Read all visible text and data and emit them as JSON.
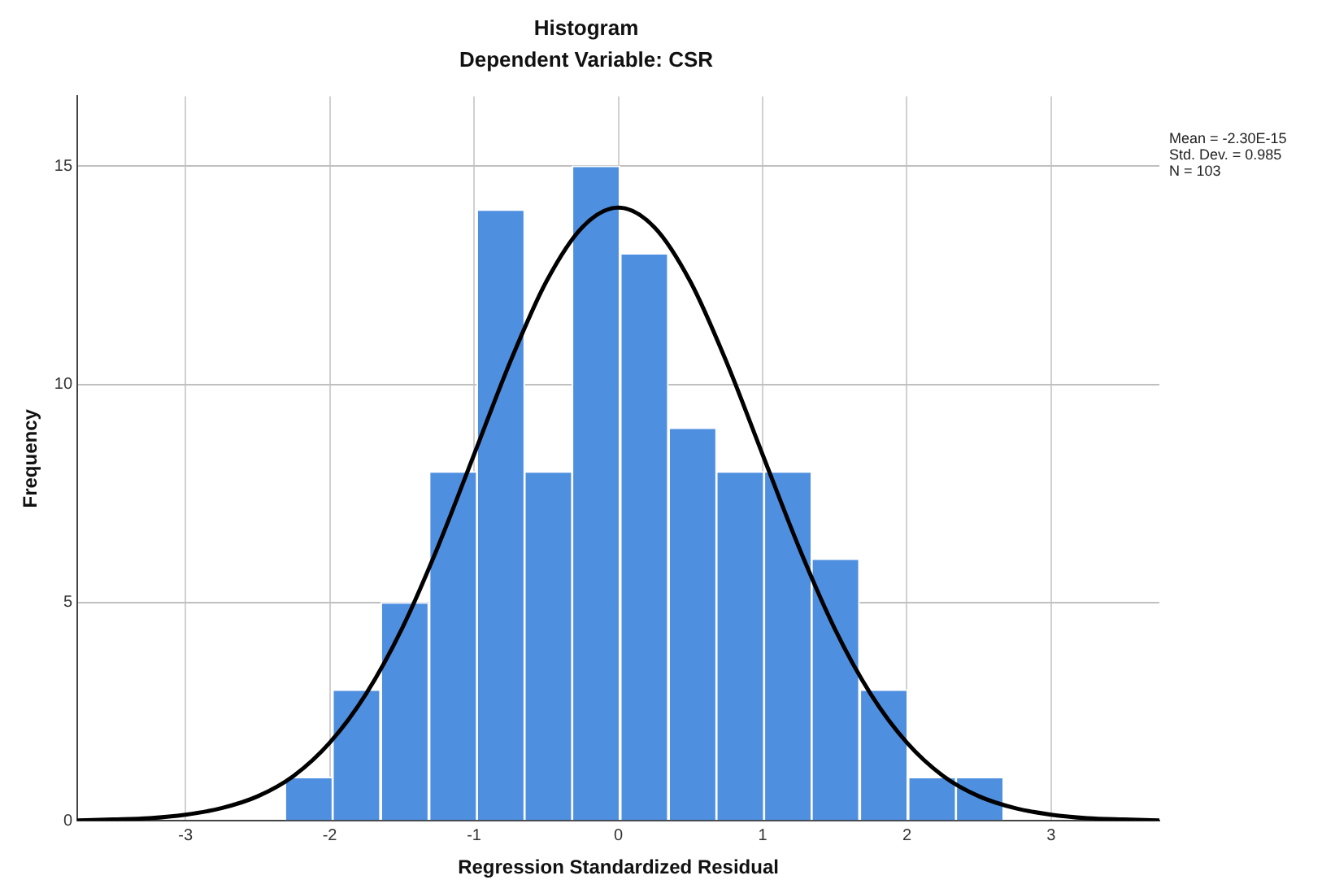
{
  "chart_data": {
    "type": "histogram",
    "title": "Histogram",
    "subtitle": "Dependent Variable: CSR",
    "xlabel": "Regression Standardized Residual",
    "ylabel": "Frequency",
    "annotations": [
      "Mean = -2.30E-15",
      "Std. Dev. = 0.985",
      "N = 103"
    ],
    "xlim": [
      -3.75,
      3.75
    ],
    "xticks": [
      -3,
      -2,
      -1,
      0,
      1,
      2,
      3
    ],
    "ylim": [
      0,
      16.6
    ],
    "yticks": [
      0,
      5,
      10,
      15
    ],
    "grid": true,
    "legend": false,
    "series": [
      {
        "color": "#4f8fe0",
        "bins": [
          -2.31,
          -1.98,
          -1.65,
          -1.31,
          -0.98,
          -0.65,
          -0.32,
          0.01,
          0.35,
          0.68,
          1.01,
          1.34,
          1.67,
          2.01,
          2.34,
          2.67
        ],
        "values": [
          1,
          3,
          5,
          8,
          14,
          8,
          15,
          13,
          9,
          8,
          8,
          6,
          3,
          1,
          1
        ]
      },
      {
        "type": "line",
        "color": "#000000",
        "x": [
          -3.75,
          -3.5,
          -3.25,
          -3,
          -2.75,
          -2.5,
          -2.25,
          -2,
          -1.75,
          -1.5,
          -1.25,
          -1,
          -0.75,
          -0.5,
          -0.25,
          0,
          0.25,
          0.5,
          0.75,
          1,
          1.25,
          1.5,
          1.75,
          2,
          2.25,
          2.5,
          2.75,
          3,
          3.25,
          3.5,
          3.75
        ],
        "values": [
          0.01,
          0.03,
          0.06,
          0.14,
          0.29,
          0.56,
          1.03,
          1.79,
          2.9,
          4.4,
          6.28,
          8.39,
          10.51,
          12.35,
          13.6,
          14.05,
          13.6,
          12.35,
          10.51,
          8.39,
          6.28,
          4.4,
          2.9,
          1.79,
          1.03,
          0.56,
          0.29,
          0.14,
          0.06,
          0.03,
          0.01
        ]
      }
    ]
  }
}
